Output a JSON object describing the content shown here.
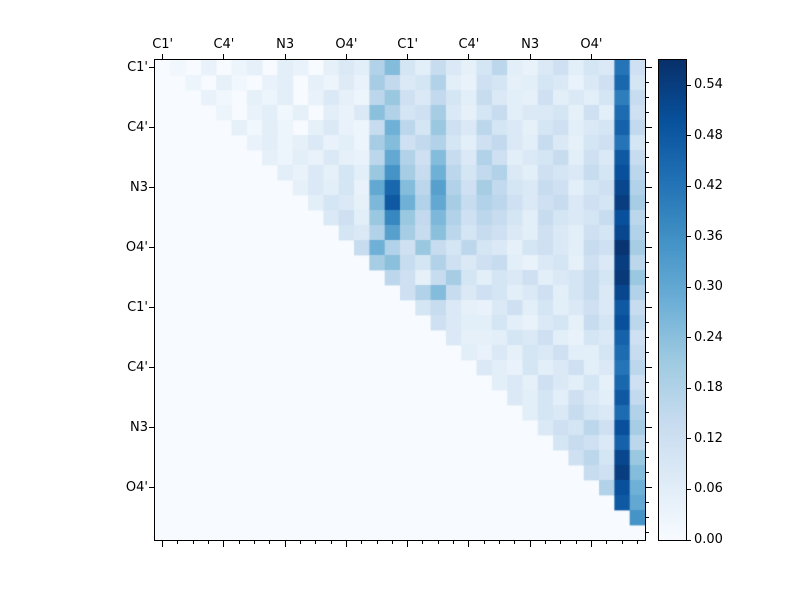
{
  "figure": {
    "background": "#ffffff",
    "axes_edge_color": "#000000"
  },
  "chart_data": {
    "type": "heatmap",
    "title": "",
    "colormap": "Blues",
    "vmin": 0.0,
    "vmax": 0.57,
    "n_rows": 32,
    "n_cols": 32,
    "x_tick_labels": [
      "C1'",
      "C4'",
      "N3",
      "O4'",
      "C1'",
      "C4'",
      "N3",
      "O4'"
    ],
    "y_tick_labels": [
      "C1'",
      "C4'",
      "N3",
      "O4'",
      "C1'",
      "C4'",
      "N3",
      "O4'"
    ],
    "x_tick_positions": [
      0,
      4,
      8,
      12,
      16,
      20,
      24,
      28
    ],
    "y_tick_positions": [
      0,
      4,
      8,
      12,
      16,
      20,
      24,
      28
    ],
    "colorbar_ticks": [
      "0.00",
      "0.06",
      "0.12",
      "0.18",
      "0.24",
      "0.30",
      "0.36",
      "0.42",
      "0.48",
      "0.54"
    ],
    "colormap_stops": [
      {
        "t": 0.0,
        "color": "#f7fbff"
      },
      {
        "t": 0.125,
        "color": "#deebf7"
      },
      {
        "t": 0.25,
        "color": "#c6dbef"
      },
      {
        "t": 0.375,
        "color": "#9ecae1"
      },
      {
        "t": 0.5,
        "color": "#6baed6"
      },
      {
        "t": 0.625,
        "color": "#4292c6"
      },
      {
        "t": 0.75,
        "color": "#2171b5"
      },
      {
        "t": 0.875,
        "color": "#08519c"
      },
      {
        "t": 1.0,
        "color": "#08306b"
      }
    ],
    "matrix": [
      [
        0,
        0.02,
        0,
        0.04,
        0,
        0.03,
        0.05,
        0,
        0.06,
        0.04,
        0,
        0.05,
        0.08,
        0.06,
        0.18,
        0.25,
        0.1,
        0.06,
        0.14,
        0.08,
        0.05,
        0.1,
        0.16,
        0.06,
        0.04,
        0.08,
        0.12,
        0.06,
        0.1,
        0.08,
        0.42,
        0.12
      ],
      [
        0,
        0,
        0.03,
        0,
        0.05,
        0.02,
        0,
        0.04,
        0.06,
        0,
        0.05,
        0.03,
        0.07,
        0.04,
        0.2,
        0.15,
        0.08,
        0.1,
        0.18,
        0.06,
        0.04,
        0.12,
        0.1,
        0.05,
        0.06,
        0.1,
        0.08,
        0.04,
        0.08,
        0.12,
        0.45,
        0.1
      ],
      [
        0,
        0,
        0,
        0.04,
        0.02,
        0,
        0.05,
        0.03,
        0.06,
        0,
        0.04,
        0.08,
        0.05,
        0.03,
        0.16,
        0.22,
        0.12,
        0.08,
        0.15,
        0.1,
        0.06,
        0.14,
        0.08,
        0.06,
        0.05,
        0.12,
        0.06,
        0.08,
        0.06,
        0.1,
        0.4,
        0.14
      ],
      [
        0,
        0,
        0,
        0,
        0.03,
        0,
        0.04,
        0.06,
        0.02,
        0.05,
        0,
        0.06,
        0.04,
        0.08,
        0.24,
        0.18,
        0.1,
        0.12,
        0.2,
        0.08,
        0.05,
        0.1,
        0.14,
        0.06,
        0.08,
        0.08,
        0.1,
        0.05,
        0.12,
        0.06,
        0.44,
        0.12
      ],
      [
        0,
        0,
        0,
        0,
        0,
        0.05,
        0.02,
        0.06,
        0.03,
        0,
        0.05,
        0.08,
        0.04,
        0.03,
        0.14,
        0.28,
        0.16,
        0.1,
        0.22,
        0.12,
        0.08,
        0.16,
        0.1,
        0.08,
        0.05,
        0.1,
        0.12,
        0.06,
        0.08,
        0.1,
        0.46,
        0.15
      ],
      [
        0,
        0,
        0,
        0,
        0,
        0,
        0.04,
        0.06,
        0.03,
        0.05,
        0.08,
        0.04,
        0.06,
        0.03,
        0.2,
        0.25,
        0.12,
        0.15,
        0.18,
        0.1,
        0.06,
        0.12,
        0.15,
        0.08,
        0.06,
        0.14,
        0.08,
        0.05,
        0.1,
        0.12,
        0.42,
        0.1
      ],
      [
        0,
        0,
        0,
        0,
        0,
        0,
        0,
        0.05,
        0.03,
        0.06,
        0.04,
        0.08,
        0.05,
        0.04,
        0.16,
        0.3,
        0.18,
        0.12,
        0.25,
        0.14,
        0.08,
        0.18,
        0.12,
        0.06,
        0.08,
        0.1,
        0.14,
        0.06,
        0.12,
        0.08,
        0.48,
        0.14
      ],
      [
        0,
        0,
        0,
        0,
        0,
        0,
        0,
        0,
        0.06,
        0.04,
        0.08,
        0.05,
        0.1,
        0.06,
        0.22,
        0.35,
        0.2,
        0.14,
        0.28,
        0.16,
        0.1,
        0.15,
        0.18,
        0.08,
        0.06,
        0.12,
        0.1,
        0.08,
        0.14,
        0.1,
        0.5,
        0.16
      ],
      [
        0,
        0,
        0,
        0,
        0,
        0,
        0,
        0,
        0,
        0.05,
        0.08,
        0.06,
        0.1,
        0.04,
        0.3,
        0.45,
        0.25,
        0.16,
        0.32,
        0.18,
        0.12,
        0.2,
        0.15,
        0.1,
        0.08,
        0.14,
        0.12,
        0.06,
        0.1,
        0.12,
        0.52,
        0.18
      ],
      [
        0,
        0,
        0,
        0,
        0,
        0,
        0,
        0,
        0,
        0,
        0.06,
        0.1,
        0.08,
        0.05,
        0.26,
        0.48,
        0.28,
        0.18,
        0.3,
        0.2,
        0.14,
        0.18,
        0.16,
        0.12,
        0.08,
        0.12,
        0.14,
        0.08,
        0.12,
        0.1,
        0.54,
        0.2
      ],
      [
        0,
        0,
        0,
        0,
        0,
        0,
        0,
        0,
        0,
        0,
        0,
        0.08,
        0.12,
        0.06,
        0.22,
        0.38,
        0.22,
        0.15,
        0.26,
        0.18,
        0.12,
        0.16,
        0.14,
        0.1,
        0.06,
        0.14,
        0.1,
        0.08,
        0.1,
        0.14,
        0.5,
        0.16
      ],
      [
        0,
        0,
        0,
        0,
        0,
        0,
        0,
        0,
        0,
        0,
        0,
        0,
        0.1,
        0.08,
        0.18,
        0.32,
        0.2,
        0.14,
        0.24,
        0.16,
        0.1,
        0.14,
        0.12,
        0.08,
        0.06,
        0.12,
        0.08,
        0.06,
        0.12,
        0.1,
        0.52,
        0.18
      ],
      [
        0,
        0,
        0,
        0,
        0,
        0,
        0,
        0,
        0,
        0,
        0,
        0,
        0,
        0.14,
        0.28,
        0.18,
        0.12,
        0.22,
        0.14,
        0.1,
        0.16,
        0.1,
        0.08,
        0.05,
        0.1,
        0.12,
        0.08,
        0.06,
        0.14,
        0.12,
        0.56,
        0.2
      ],
      [
        0,
        0,
        0,
        0,
        0,
        0,
        0,
        0,
        0,
        0,
        0,
        0,
        0,
        0,
        0.2,
        0.24,
        0.14,
        0.1,
        0.18,
        0.12,
        0.08,
        0.12,
        0.14,
        0.06,
        0.04,
        0.08,
        0.1,
        0.05,
        0.12,
        0.08,
        0.54,
        0.16
      ],
      [
        0,
        0,
        0,
        0,
        0,
        0,
        0,
        0,
        0,
        0,
        0,
        0,
        0,
        0,
        0,
        0.16,
        0.12,
        0.05,
        0.14,
        0.2,
        0.1,
        0.06,
        0.1,
        0.08,
        0.12,
        0.06,
        0.08,
        0.1,
        0.14,
        0.1,
        0.55,
        0.22
      ],
      [
        0,
        0,
        0,
        0,
        0,
        0,
        0,
        0,
        0,
        0,
        0,
        0,
        0,
        0,
        0,
        0,
        0.12,
        0.18,
        0.25,
        0.14,
        0.08,
        0.12,
        0.1,
        0.06,
        0.08,
        0.12,
        0.06,
        0.1,
        0.14,
        0.08,
        0.52,
        0.18
      ],
      [
        0,
        0,
        0,
        0,
        0,
        0,
        0,
        0,
        0,
        0,
        0,
        0,
        0,
        0,
        0,
        0,
        0,
        0.1,
        0.14,
        0.08,
        0.05,
        0.04,
        0.08,
        0.12,
        0.06,
        0.1,
        0.06,
        0.08,
        0.12,
        0.08,
        0.48,
        0.14
      ],
      [
        0,
        0,
        0,
        0,
        0,
        0,
        0,
        0,
        0,
        0,
        0,
        0,
        0,
        0,
        0,
        0,
        0,
        0,
        0.12,
        0.08,
        0.06,
        0.06,
        0.1,
        0.06,
        0.04,
        0.08,
        0.1,
        0.05,
        0.14,
        0.1,
        0.5,
        0.16
      ],
      [
        0,
        0,
        0,
        0,
        0,
        0,
        0,
        0,
        0,
        0,
        0,
        0,
        0,
        0,
        0,
        0,
        0,
        0,
        0,
        0.08,
        0.05,
        0.05,
        0.06,
        0.1,
        0.08,
        0.12,
        0.06,
        0.04,
        0.1,
        0.08,
        0.46,
        0.12
      ],
      [
        0,
        0,
        0,
        0,
        0,
        0,
        0,
        0,
        0,
        0,
        0,
        0,
        0,
        0,
        0,
        0,
        0,
        0,
        0,
        0,
        0.06,
        0.04,
        0.08,
        0.05,
        0.1,
        0.08,
        0.12,
        0.06,
        0.06,
        0.1,
        0.44,
        0.14
      ],
      [
        0,
        0,
        0,
        0,
        0,
        0,
        0,
        0,
        0,
        0,
        0,
        0,
        0,
        0,
        0,
        0,
        0,
        0,
        0,
        0,
        0,
        0.08,
        0.06,
        0.04,
        0.1,
        0.06,
        0.08,
        0.12,
        0.06,
        0.08,
        0.42,
        0.16
      ],
      [
        0,
        0,
        0,
        0,
        0,
        0,
        0,
        0,
        0,
        0,
        0,
        0,
        0,
        0,
        0,
        0,
        0,
        0,
        0,
        0,
        0,
        0,
        0.06,
        0.08,
        0.05,
        0.12,
        0.08,
        0.06,
        0.1,
        0.05,
        0.45,
        0.12
      ],
      [
        0,
        0,
        0,
        0,
        0,
        0,
        0,
        0,
        0,
        0,
        0,
        0,
        0,
        0,
        0,
        0,
        0,
        0,
        0,
        0,
        0,
        0,
        0,
        0.08,
        0.06,
        0.1,
        0.06,
        0.12,
        0.08,
        0.06,
        0.48,
        0.15
      ],
      [
        0,
        0,
        0,
        0,
        0,
        0,
        0,
        0,
        0,
        0,
        0,
        0,
        0,
        0,
        0,
        0,
        0,
        0,
        0,
        0,
        0,
        0,
        0,
        0,
        0.06,
        0.1,
        0.08,
        0.14,
        0.1,
        0.08,
        0.44,
        0.18
      ],
      [
        0,
        0,
        0,
        0,
        0,
        0,
        0,
        0,
        0,
        0,
        0,
        0,
        0,
        0,
        0,
        0,
        0,
        0,
        0,
        0,
        0,
        0,
        0,
        0,
        0,
        0.08,
        0.12,
        0.1,
        0.16,
        0.12,
        0.5,
        0.2
      ],
      [
        0,
        0,
        0,
        0,
        0,
        0,
        0,
        0,
        0,
        0,
        0,
        0,
        0,
        0,
        0,
        0,
        0,
        0,
        0,
        0,
        0,
        0,
        0,
        0,
        0,
        0,
        0.1,
        0.14,
        0.12,
        0.08,
        0.46,
        0.16
      ],
      [
        0,
        0,
        0,
        0,
        0,
        0,
        0,
        0,
        0,
        0,
        0,
        0,
        0,
        0,
        0,
        0,
        0,
        0,
        0,
        0,
        0,
        0,
        0,
        0,
        0,
        0,
        0,
        0.12,
        0.16,
        0.1,
        0.52,
        0.22
      ],
      [
        0,
        0,
        0,
        0,
        0,
        0,
        0,
        0,
        0,
        0,
        0,
        0,
        0,
        0,
        0,
        0,
        0,
        0,
        0,
        0,
        0,
        0,
        0,
        0,
        0,
        0,
        0,
        0,
        0.14,
        0.12,
        0.54,
        0.25
      ],
      [
        0,
        0,
        0,
        0,
        0,
        0,
        0,
        0,
        0,
        0,
        0,
        0,
        0,
        0,
        0,
        0,
        0,
        0,
        0,
        0,
        0,
        0,
        0,
        0,
        0,
        0,
        0,
        0,
        0,
        0.18,
        0.5,
        0.28
      ],
      [
        0,
        0,
        0,
        0,
        0,
        0,
        0,
        0,
        0,
        0,
        0,
        0,
        0,
        0,
        0,
        0,
        0,
        0,
        0,
        0,
        0,
        0,
        0,
        0,
        0,
        0,
        0,
        0,
        0,
        0,
        0.48,
        0.3
      ],
      [
        0,
        0,
        0,
        0,
        0,
        0,
        0,
        0,
        0,
        0,
        0,
        0,
        0,
        0,
        0,
        0,
        0,
        0,
        0,
        0,
        0,
        0,
        0,
        0,
        0,
        0,
        0,
        0,
        0,
        0,
        0,
        0.35
      ],
      [
        0,
        0,
        0,
        0,
        0,
        0,
        0,
        0,
        0,
        0,
        0,
        0,
        0,
        0,
        0,
        0,
        0,
        0,
        0,
        0,
        0,
        0,
        0,
        0,
        0,
        0,
        0,
        0,
        0,
        0,
        0,
        0
      ]
    ]
  }
}
